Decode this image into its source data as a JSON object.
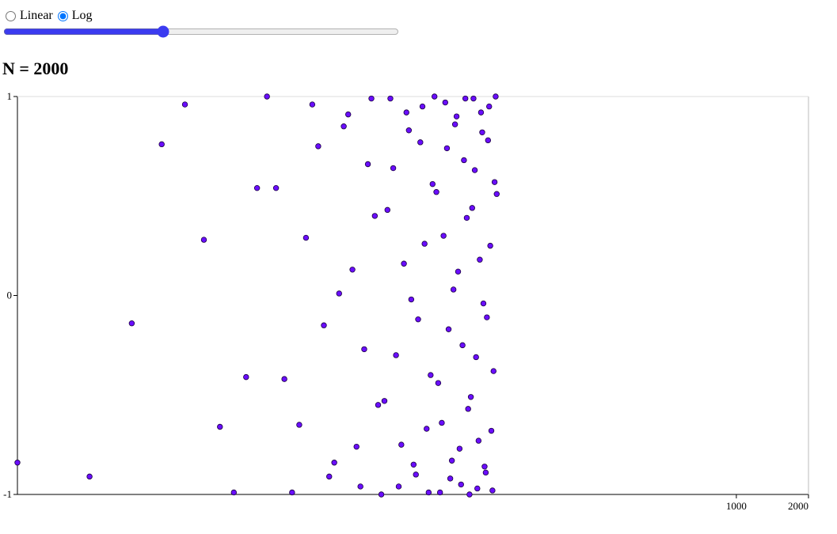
{
  "controls": {
    "scale_options": [
      "Linear",
      "Log"
    ],
    "selected": "Log"
  },
  "chart_data": {
    "type": "scatter",
    "title": "N = 2000",
    "x": [
      1,
      2,
      3,
      4,
      5,
      6,
      7,
      8,
      9,
      10,
      11,
      12,
      13,
      14,
      15,
      16,
      17,
      18,
      19,
      20,
      21,
      22,
      23,
      24,
      25,
      26,
      27,
      28,
      29,
      30,
      31,
      32,
      33,
      34,
      35,
      36,
      37,
      38,
      39,
      40,
      41,
      42,
      43,
      44,
      45,
      46,
      47,
      48,
      49,
      50,
      51,
      52,
      53,
      54,
      55,
      56,
      57,
      58,
      59,
      60,
      61,
      62,
      63,
      64,
      65,
      66,
      67,
      68,
      69,
      70,
      71,
      72,
      73,
      74,
      75,
      76,
      77,
      78,
      79,
      80,
      81,
      82,
      83,
      84,
      85,
      86,
      87,
      88,
      89,
      90,
      91,
      92,
      93,
      94,
      95,
      96,
      97,
      98,
      99,
      100
    ],
    "values": [
      -0.84,
      -0.91,
      -0.14,
      0.76,
      0.96,
      0.28,
      -0.66,
      -0.99,
      -0.41,
      0.54,
      1,
      0.54,
      -0.42,
      -0.99,
      -0.65,
      0.29,
      0.96,
      0.75,
      -0.15,
      -0.91,
      -0.84,
      0.01,
      0.85,
      0.91,
      0.13,
      -0.76,
      -0.96,
      -0.27,
      0.66,
      0.99,
      0.4,
      -0.55,
      -1,
      -0.53,
      0.43,
      0.99,
      0.64,
      -0.3,
      -0.96,
      -0.75,
      0.16,
      0.92,
      0.83,
      -0.02,
      -0.85,
      -0.9,
      -0.12,
      0.77,
      0.95,
      0.26,
      -0.67,
      -0.99,
      -0.4,
      0.56,
      1,
      0.52,
      -0.44,
      -0.99,
      -0.64,
      0.3,
      0.97,
      0.74,
      -0.17,
      -0.92,
      -0.83,
      0.03,
      0.86,
      0.9,
      0.12,
      -0.77,
      -0.95,
      -0.25,
      0.68,
      0.99,
      0.39,
      -0.57,
      -1,
      -0.51,
      0.44,
      0.99,
      0.63,
      -0.31,
      -0.97,
      -0.73,
      0.18,
      0.92,
      0.82,
      -0.04,
      -0.86,
      -0.89,
      -0.11,
      0.78,
      0.95,
      0.25,
      -0.68,
      -0.98,
      -0.38,
      0.57,
      1,
      0.51
    ],
    "xlim": [
      1,
      2000
    ],
    "ylim": [
      -1,
      1
    ],
    "xticks": [
      1000,
      2000
    ],
    "yticks": [
      1,
      0,
      -1
    ],
    "log_x": true,
    "color": "#6a0dff"
  }
}
